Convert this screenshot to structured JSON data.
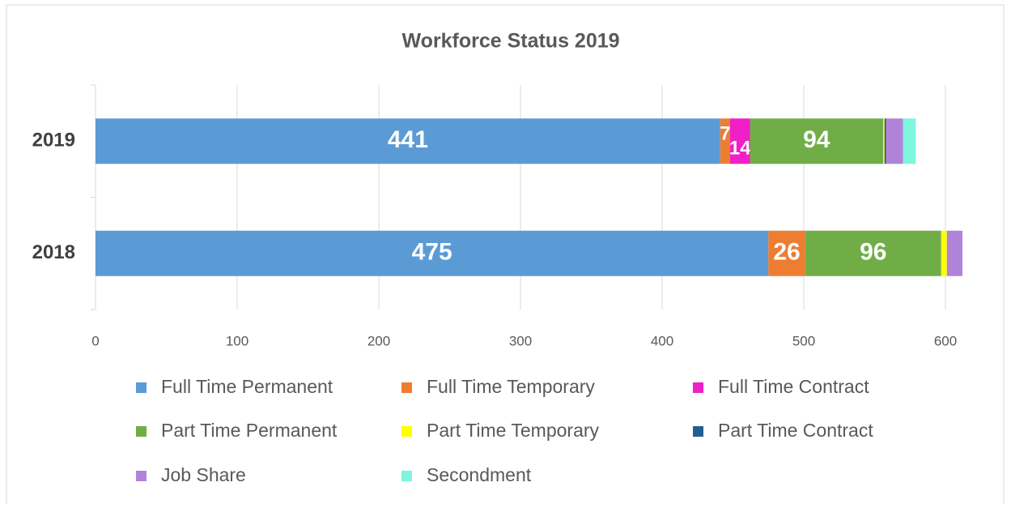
{
  "chart_data": {
    "type": "stacked_barh",
    "title": "Workforce Status 2019",
    "categories": [
      "2019",
      "2018"
    ],
    "series": [
      {
        "name": "Full Time Permanent",
        "color": "#5b9bd5",
        "values": [
          441,
          475
        ],
        "value_labels": [
          "441",
          "475"
        ]
      },
      {
        "name": "Full Time Temporary",
        "color": "#ed7d31",
        "values": [
          7,
          26
        ],
        "value_labels": [
          "7",
          "26"
        ]
      },
      {
        "name": "Full Time Contract",
        "color": "#f01fc8",
        "values": [
          14,
          0
        ],
        "value_labels": [
          "14",
          null
        ]
      },
      {
        "name": "Part Time Permanent",
        "color": "#70ad47",
        "values": [
          94,
          96
        ],
        "value_labels": [
          "94",
          "96"
        ]
      },
      {
        "name": "Part Time Temporary",
        "color": "#ffff00",
        "values": [
          1,
          4
        ]
      },
      {
        "name": "Part Time Contract",
        "color": "#255e91",
        "values": [
          1,
          0
        ]
      },
      {
        "name": "Job Share",
        "color": "#b083d9",
        "values": [
          12,
          11
        ]
      },
      {
        "name": "Secondment",
        "color": "#7ff5df",
        "values": [
          9,
          0
        ]
      }
    ],
    "xlim": [
      0,
      600
    ],
    "xticks": [
      0,
      100,
      200,
      300,
      400,
      500,
      600
    ],
    "grid": true,
    "legend": "bottom"
  }
}
